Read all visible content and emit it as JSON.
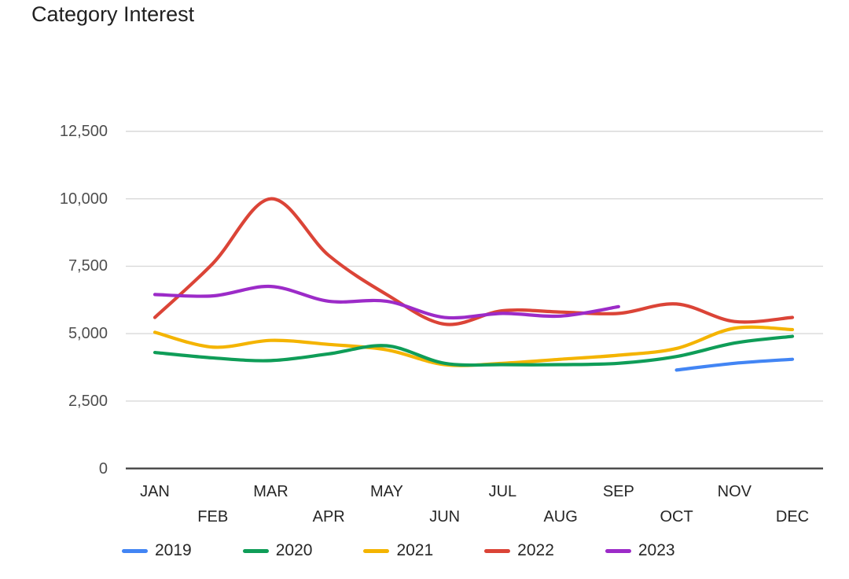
{
  "chart_data": {
    "type": "line",
    "title": "Category Interest",
    "xlabel": "",
    "ylabel": "",
    "categories": [
      "JAN",
      "FEB",
      "MAR",
      "APR",
      "MAY",
      "JUN",
      "JUL",
      "AUG",
      "SEP",
      "OCT",
      "NOV",
      "DEC"
    ],
    "y_tick_labels": [
      "0",
      "2,500",
      "5,000",
      "7,500",
      "10,000",
      "12,500"
    ],
    "y_tick_values": [
      0,
      2500,
      5000,
      7500,
      10000,
      12500
    ],
    "ylim": [
      0,
      12500
    ],
    "grid": true,
    "legend_position": "bottom",
    "line_style": "smooth",
    "series": [
      {
        "name": "2019",
        "color": "#4285F4",
        "values": [
          null,
          null,
          null,
          null,
          null,
          null,
          null,
          null,
          null,
          3650,
          3900,
          4050
        ]
      },
      {
        "name": "2020",
        "color": "#0F9D58",
        "values": [
          4300,
          4100,
          4000,
          4250,
          4550,
          3900,
          3850,
          3850,
          3900,
          4150,
          4650,
          4900
        ]
      },
      {
        "name": "2021",
        "color": "#F4B400",
        "values": [
          5050,
          4500,
          4750,
          4600,
          4400,
          3850,
          3900,
          4050,
          4200,
          4450,
          5200,
          5150
        ]
      },
      {
        "name": "2022",
        "color": "#DB4437",
        "values": [
          5600,
          7600,
          10000,
          7900,
          6450,
          5350,
          5850,
          5800,
          5750,
          6100,
          5450,
          5600
        ]
      },
      {
        "name": "2023",
        "color": "#9C2BC8",
        "values": [
          6450,
          6400,
          6750,
          6200,
          6200,
          5600,
          5750,
          5650,
          6000,
          null,
          null,
          null
        ]
      }
    ],
    "colors": {
      "grid_line": "#d9d9d9",
      "axis_line": "#3c3c3c",
      "title_text": "#212121",
      "y_tick_text": "#4e4e4e",
      "x_tick_text": "#262626",
      "background": "#ffffff"
    }
  }
}
